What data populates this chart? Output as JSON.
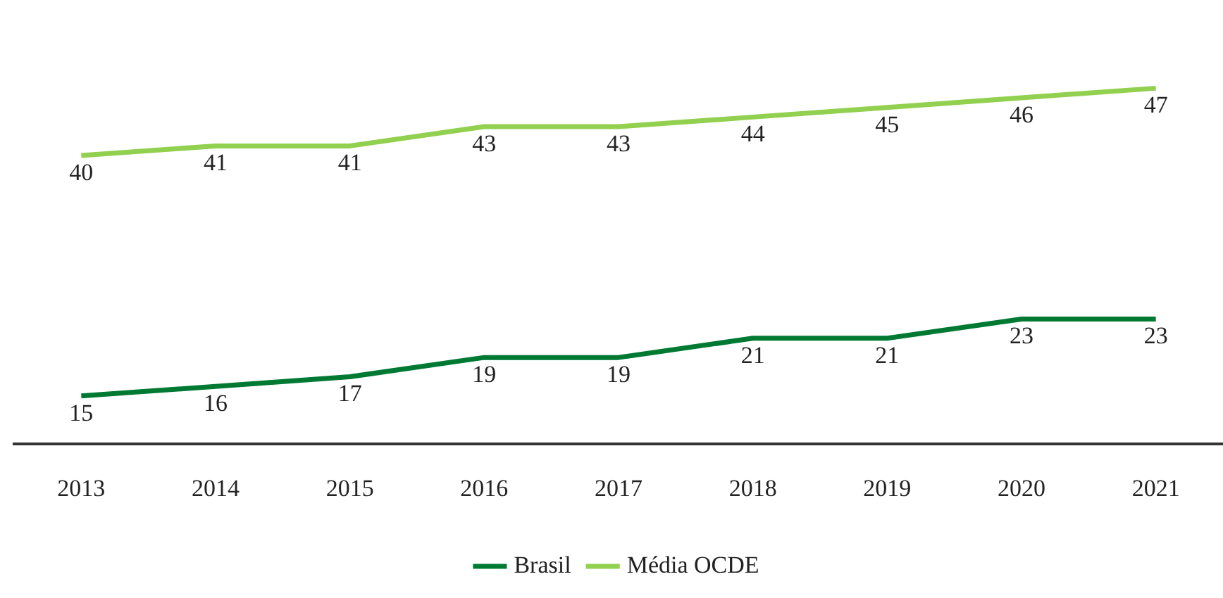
{
  "chart_data": {
    "type": "line",
    "categories": [
      "2013",
      "2014",
      "2015",
      "2016",
      "2017",
      "2018",
      "2019",
      "2020",
      "2021"
    ],
    "series": [
      {
        "name": "Brasil",
        "color": "#007a33",
        "values": [
          15,
          16,
          17,
          19,
          19,
          21,
          21,
          23,
          23
        ]
      },
      {
        "name": "Média OCDE",
        "color": "#92d050",
        "values": [
          40,
          41,
          41,
          43,
          43,
          44,
          45,
          46,
          47
        ]
      }
    ],
    "data_labels": true,
    "legend": "bottom",
    "grid": false,
    "tick_labels": "x",
    "marker": "none",
    "line_style": "solid"
  }
}
